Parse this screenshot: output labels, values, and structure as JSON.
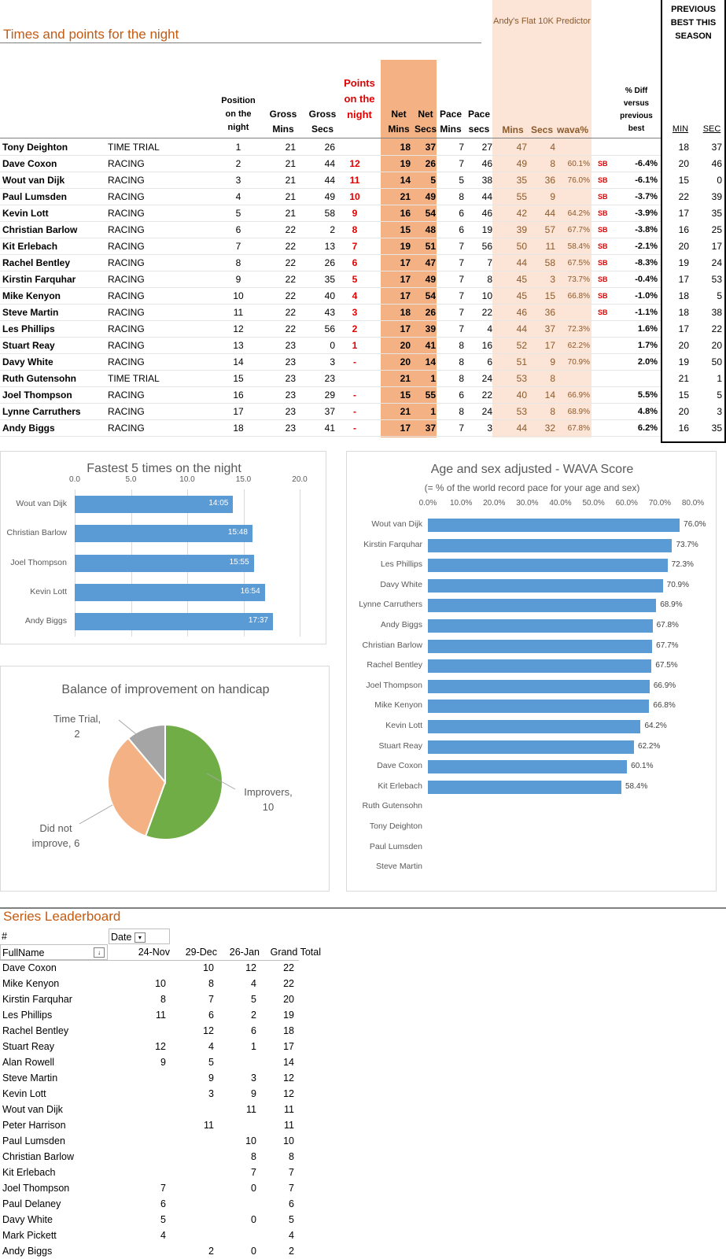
{
  "sheet": {
    "title": "Times and points for the night",
    "predictor_title": "Andy's Flat 10K Predictor",
    "prev_best_title": "PREVIOUS BEST THIS SEASON",
    "headers": {
      "position": "Position on the night",
      "gross_mins": "Gross Mins",
      "gross_secs": "Gross Secs",
      "points": "Points on the night",
      "net_mins": "Net Mins",
      "net_secs": "Net Secs",
      "pace_mins": "Pace Mins",
      "pace_secs": "Pace secs",
      "pred_mins": "Mins",
      "pred_secs": "Secs",
      "wava": "wava%",
      "diff": "% Diff versus previous best",
      "prev_min": "MIN",
      "prev_sec": "SEC"
    },
    "rows": [
      {
        "name": "Tony Deighton",
        "type": "TIME TRIAL",
        "pos": "1",
        "gm": "21",
        "gs": "26",
        "pts": "",
        "nm": "18",
        "ns": "37",
        "pm": "7",
        "ps": "27",
        "prm": "47",
        "prs": "4",
        "wava": "",
        "sb": "",
        "diff": "",
        "bm": "18",
        "bs": "37"
      },
      {
        "name": "Dave Coxon",
        "type": "RACING",
        "pos": "2",
        "gm": "21",
        "gs": "44",
        "pts": "12",
        "nm": "19",
        "ns": "26",
        "pm": "7",
        "ps": "46",
        "prm": "49",
        "prs": "8",
        "wava": "60.1%",
        "sb": "SB",
        "diff": "-6.4%",
        "bm": "20",
        "bs": "46"
      },
      {
        "name": "Wout van Dijk",
        "type": "RACING",
        "pos": "3",
        "gm": "21",
        "gs": "44",
        "pts": "11",
        "nm": "14",
        "ns": "5",
        "pm": "5",
        "ps": "38",
        "prm": "35",
        "prs": "36",
        "wava": "76.0%",
        "sb": "SB",
        "diff": "-6.1%",
        "bm": "15",
        "bs": "0"
      },
      {
        "name": "Paul Lumsden",
        "type": "RACING",
        "pos": "4",
        "gm": "21",
        "gs": "49",
        "pts": "10",
        "nm": "21",
        "ns": "49",
        "pm": "8",
        "ps": "44",
        "prm": "55",
        "prs": "9",
        "wava": "",
        "sb": "SB",
        "diff": "-3.7%",
        "bm": "22",
        "bs": "39"
      },
      {
        "name": "Kevin Lott",
        "type": "RACING",
        "pos": "5",
        "gm": "21",
        "gs": "58",
        "pts": "9",
        "nm": "16",
        "ns": "54",
        "pm": "6",
        "ps": "46",
        "prm": "42",
        "prs": "44",
        "wava": "64.2%",
        "sb": "SB",
        "diff": "-3.9%",
        "bm": "17",
        "bs": "35"
      },
      {
        "name": "Christian Barlow",
        "type": "RACING",
        "pos": "6",
        "gm": "22",
        "gs": "2",
        "pts": "8",
        "nm": "15",
        "ns": "48",
        "pm": "6",
        "ps": "19",
        "prm": "39",
        "prs": "57",
        "wava": "67.7%",
        "sb": "SB",
        "diff": "-3.8%",
        "bm": "16",
        "bs": "25"
      },
      {
        "name": "Kit Erlebach",
        "type": "RACING",
        "pos": "7",
        "gm": "22",
        "gs": "13",
        "pts": "7",
        "nm": "19",
        "ns": "51",
        "pm": "7",
        "ps": "56",
        "prm": "50",
        "prs": "11",
        "wava": "58.4%",
        "sb": "SB",
        "diff": "-2.1%",
        "bm": "20",
        "bs": "17"
      },
      {
        "name": "Rachel Bentley",
        "type": "RACING",
        "pos": "8",
        "gm": "22",
        "gs": "26",
        "pts": "6",
        "nm": "17",
        "ns": "47",
        "pm": "7",
        "ps": "7",
        "prm": "44",
        "prs": "58",
        "wava": "67.5%",
        "sb": "SB",
        "diff": "-8.3%",
        "bm": "19",
        "bs": "24"
      },
      {
        "name": "Kirstin Farquhar",
        "type": "RACING",
        "pos": "9",
        "gm": "22",
        "gs": "35",
        "pts": "5",
        "nm": "17",
        "ns": "49",
        "pm": "7",
        "ps": "8",
        "prm": "45",
        "prs": "3",
        "wava": "73.7%",
        "sb": "SB",
        "diff": "-0.4%",
        "bm": "17",
        "bs": "53"
      },
      {
        "name": "Mike Kenyon",
        "type": "RACING",
        "pos": "10",
        "gm": "22",
        "gs": "40",
        "pts": "4",
        "nm": "17",
        "ns": "54",
        "pm": "7",
        "ps": "10",
        "prm": "45",
        "prs": "15",
        "wava": "66.8%",
        "sb": "SB",
        "diff": "-1.0%",
        "bm": "18",
        "bs": "5"
      },
      {
        "name": "Steve Martin",
        "type": "RACING",
        "pos": "11",
        "gm": "22",
        "gs": "43",
        "pts": "3",
        "nm": "18",
        "ns": "26",
        "pm": "7",
        "ps": "22",
        "prm": "46",
        "prs": "36",
        "wava": "",
        "sb": "SB",
        "diff": "-1.1%",
        "bm": "18",
        "bs": "38"
      },
      {
        "name": "Les Phillips",
        "type": "RACING",
        "pos": "12",
        "gm": "22",
        "gs": "56",
        "pts": "2",
        "nm": "17",
        "ns": "39",
        "pm": "7",
        "ps": "4",
        "prm": "44",
        "prs": "37",
        "wava": "72.3%",
        "sb": "",
        "diff": "1.6%",
        "bm": "17",
        "bs": "22"
      },
      {
        "name": "Stuart Reay",
        "type": "RACING",
        "pos": "13",
        "gm": "23",
        "gs": "0",
        "pts": "1",
        "nm": "20",
        "ns": "41",
        "pm": "8",
        "ps": "16",
        "prm": "52",
        "prs": "17",
        "wava": "62.2%",
        "sb": "",
        "diff": "1.7%",
        "bm": "20",
        "bs": "20"
      },
      {
        "name": "Davy White",
        "type": "RACING",
        "pos": "14",
        "gm": "23",
        "gs": "3",
        "pts": "-",
        "nm": "20",
        "ns": "14",
        "pm": "8",
        "ps": "6",
        "prm": "51",
        "prs": "9",
        "wava": "70.9%",
        "sb": "",
        "diff": "2.0%",
        "bm": "19",
        "bs": "50"
      },
      {
        "name": "Ruth Gutensohn",
        "type": "TIME TRIAL",
        "pos": "15",
        "gm": "23",
        "gs": "23",
        "pts": "",
        "nm": "21",
        "ns": "1",
        "pm": "8",
        "ps": "24",
        "prm": "53",
        "prs": "8",
        "wava": "",
        "sb": "",
        "diff": "",
        "bm": "21",
        "bs": "1"
      },
      {
        "name": "Joel Thompson",
        "type": "RACING",
        "pos": "16",
        "gm": "23",
        "gs": "29",
        "pts": "-",
        "nm": "15",
        "ns": "55",
        "pm": "6",
        "ps": "22",
        "prm": "40",
        "prs": "14",
        "wava": "66.9%",
        "sb": "",
        "diff": "5.5%",
        "bm": "15",
        "bs": "5"
      },
      {
        "name": "Lynne Carruthers",
        "type": "RACING",
        "pos": "17",
        "gm": "23",
        "gs": "37",
        "pts": "-",
        "nm": "21",
        "ns": "1",
        "pm": "8",
        "ps": "24",
        "prm": "53",
        "prs": "8",
        "wava": "68.9%",
        "sb": "",
        "diff": "4.8%",
        "bm": "20",
        "bs": "3"
      },
      {
        "name": "Andy Biggs",
        "type": "RACING",
        "pos": "18",
        "gm": "23",
        "gs": "41",
        "pts": "-",
        "nm": "17",
        "ns": "37",
        "pm": "7",
        "ps": "3",
        "prm": "44",
        "prs": "32",
        "wava": "67.8%",
        "sb": "",
        "diff": "6.2%",
        "bm": "16",
        "bs": "35"
      }
    ]
  },
  "chart_data": [
    {
      "type": "bar",
      "title": "Fastest 5 times on the night",
      "categories": [
        "Wout van Dijk",
        "Christian Barlow",
        "Joel Thompson",
        "Kevin Lott",
        "Andy Biggs"
      ],
      "values": [
        14.08,
        15.8,
        15.92,
        16.9,
        17.62
      ],
      "labels": [
        "14:05",
        "15:48",
        "15:55",
        "16:54",
        "17:37"
      ],
      "xlim": [
        0,
        20
      ],
      "xticks": [
        "0.0",
        "5.0",
        "10.0",
        "15.0",
        "20.0"
      ]
    },
    {
      "type": "bar",
      "title": "Age and sex adjusted - WAVA Score",
      "subtitle": "(= % of the world record pace for your age and sex)",
      "categories": [
        "Wout van Dijk",
        "Kirstin Farquhar",
        "Les Phillips",
        "Davy White",
        "Lynne Carruthers",
        "Andy Biggs",
        "Christian Barlow",
        "Rachel Bentley",
        "Joel Thompson",
        "Mike Kenyon",
        "Kevin Lott",
        "Stuart Reay",
        "Dave Coxon",
        "Kit Erlebach",
        "Ruth Gutensohn",
        "Tony Deighton",
        "Paul Lumsden",
        "Steve Martin"
      ],
      "values": [
        76.0,
        73.7,
        72.3,
        70.9,
        68.9,
        67.8,
        67.7,
        67.5,
        66.9,
        66.8,
        64.2,
        62.2,
        60.1,
        58.4,
        null,
        null,
        null,
        null
      ],
      "labels": [
        "76.0%",
        "73.7%",
        "72.3%",
        "70.9%",
        "68.9%",
        "67.8%",
        "67.7%",
        "67.5%",
        "66.9%",
        "66.8%",
        "64.2%",
        "62.2%",
        "60.1%",
        "58.4%",
        "",
        "",
        "",
        ""
      ],
      "xlim": [
        0,
        80
      ],
      "xticks": [
        "0.0%",
        "10.0%",
        "20.0%",
        "30.0%",
        "40.0%",
        "50.0%",
        "60.0%",
        "70.0%",
        "80.0%"
      ]
    },
    {
      "type": "pie",
      "title": "Balance of improvement on handicap",
      "slices": [
        {
          "name": "Improvers",
          "value": 10,
          "color": "#70ad47",
          "label_line1": "Improvers,",
          "label_line2": "10"
        },
        {
          "name": "Did not improve",
          "value": 6,
          "color": "#f4b183",
          "label_line1": "Did not",
          "label_line2": "improve, 6"
        },
        {
          "name": "Time Trial",
          "value": 2,
          "color": "#a5a5a5",
          "label_line1": "Time Trial,",
          "label_line2": "2"
        }
      ]
    }
  ],
  "leaderboard": {
    "title": "Series Leaderboard",
    "hash": "#",
    "date_label": "Date",
    "fullname_label": "FullName",
    "columns": [
      "24-Nov",
      "29-Dec",
      "26-Jan",
      "Grand Total"
    ],
    "rows": [
      {
        "name": "Dave Coxon",
        "v": [
          "",
          "10",
          "12",
          "22"
        ]
      },
      {
        "name": "Mike Kenyon",
        "v": [
          "10",
          "8",
          "4",
          "22"
        ]
      },
      {
        "name": "Kirstin Farquhar",
        "v": [
          "8",
          "7",
          "5",
          "20"
        ]
      },
      {
        "name": "Les Phillips",
        "v": [
          "11",
          "6",
          "2",
          "19"
        ]
      },
      {
        "name": "Rachel Bentley",
        "v": [
          "",
          "12",
          "6",
          "18"
        ]
      },
      {
        "name": "Stuart Reay",
        "v": [
          "12",
          "4",
          "1",
          "17"
        ]
      },
      {
        "name": "Alan Rowell",
        "v": [
          "9",
          "5",
          "",
          "14"
        ]
      },
      {
        "name": "Steve Martin",
        "v": [
          "",
          "9",
          "3",
          "12"
        ]
      },
      {
        "name": "Kevin Lott",
        "v": [
          "",
          "3",
          "9",
          "12"
        ]
      },
      {
        "name": "Wout van Dijk",
        "v": [
          "",
          "",
          "11",
          "11"
        ]
      },
      {
        "name": "Peter Harrison",
        "v": [
          "",
          "11",
          "",
          "11"
        ]
      },
      {
        "name": "Paul Lumsden",
        "v": [
          "",
          "",
          "10",
          "10"
        ]
      },
      {
        "name": "Christian Barlow",
        "v": [
          "",
          "",
          "8",
          "8"
        ]
      },
      {
        "name": "Kit Erlebach",
        "v": [
          "",
          "",
          "7",
          "7"
        ]
      },
      {
        "name": "Joel Thompson",
        "v": [
          "7",
          "",
          "0",
          "7"
        ]
      },
      {
        "name": "Paul Delaney",
        "v": [
          "6",
          "",
          "",
          "6"
        ]
      },
      {
        "name": "Davy White",
        "v": [
          "5",
          "",
          "0",
          "5"
        ]
      },
      {
        "name": "Mark Pickett",
        "v": [
          "4",
          "",
          "",
          "4"
        ]
      },
      {
        "name": "Andy Biggs",
        "v": [
          "",
          "2",
          "0",
          "2"
        ]
      }
    ]
  }
}
